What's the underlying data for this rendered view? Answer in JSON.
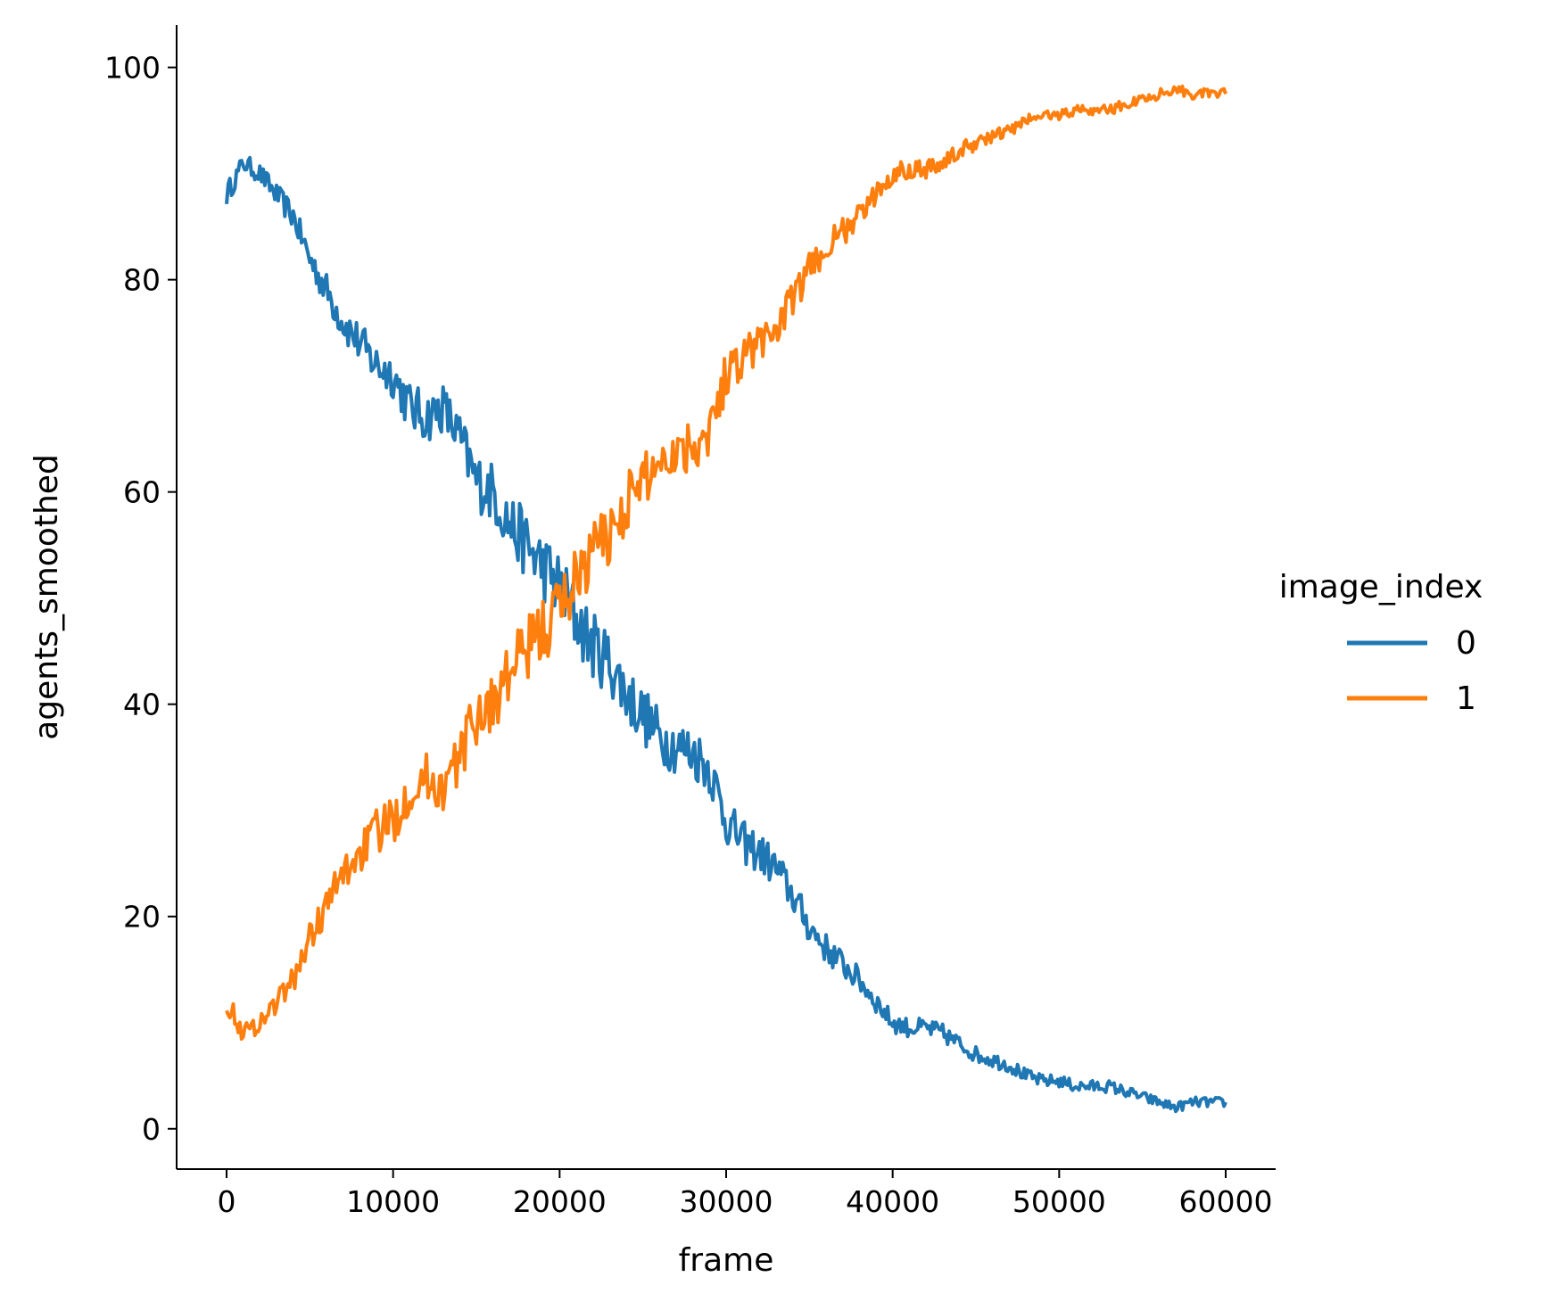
{
  "chart_data": {
    "type": "line",
    "title": "",
    "xlabel": "frame",
    "ylabel": "agents_smoothed",
    "xlim": [
      -3000,
      63000
    ],
    "ylim": [
      -3.8,
      104
    ],
    "xticks": [
      0,
      10000,
      20000,
      30000,
      40000,
      50000,
      60000
    ],
    "xtick_labels": [
      "0",
      "10000",
      "20000",
      "30000",
      "40000",
      "50000",
      "60000"
    ],
    "yticks": [
      0,
      20,
      40,
      60,
      80,
      100
    ],
    "ytick_labels": [
      "0",
      "20",
      "40",
      "60",
      "80",
      "100"
    ],
    "grid": false,
    "legend": {
      "title": "image_index",
      "placement": "right, outside plot"
    },
    "x": [
      0,
      1000,
      2000,
      3000,
      4000,
      5000,
      6000,
      7000,
      8000,
      9000,
      10000,
      11000,
      12000,
      13000,
      14000,
      15000,
      16000,
      17000,
      18000,
      19000,
      20000,
      21000,
      22000,
      23000,
      24000,
      25000,
      26000,
      27000,
      28000,
      29000,
      30000,
      31000,
      32000,
      33000,
      34000,
      35000,
      36000,
      37000,
      38000,
      39000,
      40000,
      41000,
      42000,
      43000,
      44000,
      45000,
      46000,
      47000,
      48000,
      49000,
      50000,
      51000,
      52000,
      53000,
      54000,
      55000,
      56000,
      57000,
      58000,
      59000,
      60000
    ],
    "series": [
      {
        "name": "0",
        "color": "#1f77b4",
        "values": [
          88,
          91,
          90,
          88,
          86,
          82,
          79,
          76,
          74,
          72,
          71,
          68,
          67,
          68,
          65,
          61,
          60,
          57,
          55,
          53,
          51,
          48,
          45.5,
          44,
          41,
          39,
          37,
          36,
          35.5,
          34,
          29,
          27,
          26,
          24.5,
          22,
          19,
          17,
          15.5,
          14,
          12,
          10,
          9.5,
          9.5,
          9,
          8,
          7,
          6.5,
          6,
          5,
          4.5,
          4.5,
          4,
          4,
          4,
          3.5,
          3,
          2.5,
          2,
          2.5,
          2.5,
          2.5
        ]
      },
      {
        "name": "1",
        "color": "#ff7f0e",
        "values": [
          12,
          9,
          10,
          12,
          14,
          18,
          21,
          24,
          26,
          28,
          29,
          32,
          33,
          32,
          35,
          39,
          40,
          43,
          45,
          47,
          49,
          52,
          54.5,
          56,
          59,
          61,
          63,
          64,
          64.5,
          66,
          71,
          73,
          74,
          75.5,
          78,
          81,
          83,
          84.5,
          86,
          88,
          90,
          90.5,
          90.5,
          91,
          92,
          93,
          93.5,
          94,
          95,
          95.5,
          95.5,
          96,
          96,
          96,
          96.5,
          97,
          97.5,
          98,
          97.5,
          97.5,
          97.5
        ]
      }
    ]
  }
}
